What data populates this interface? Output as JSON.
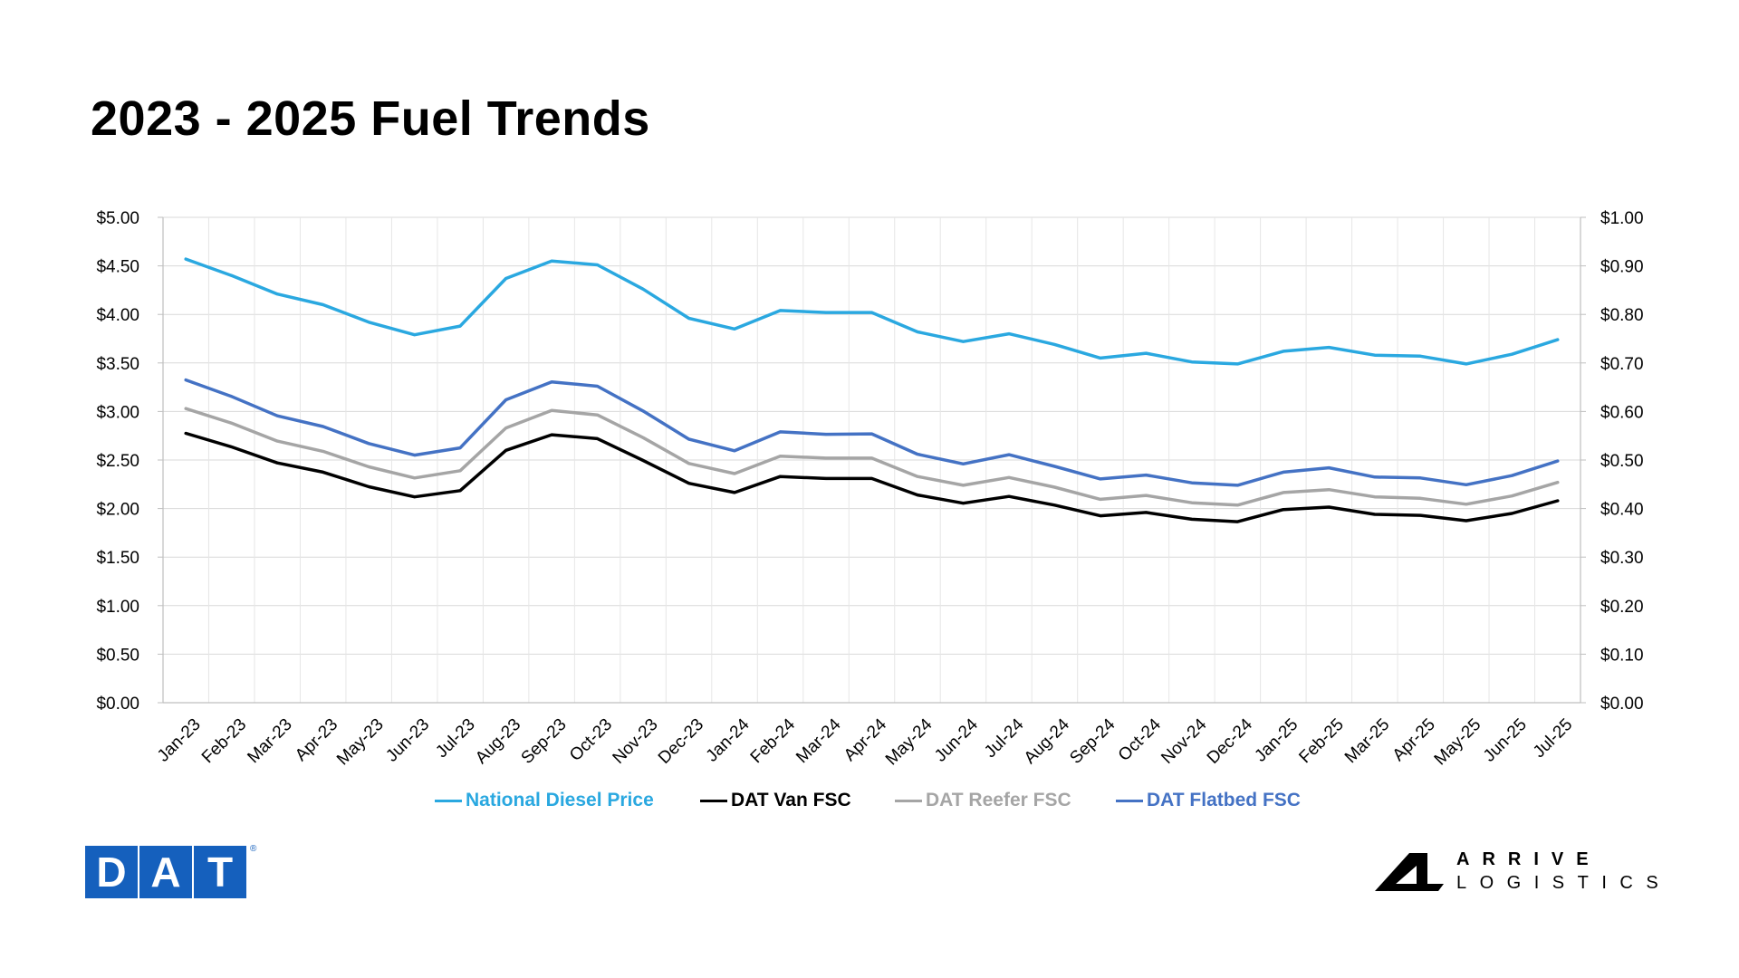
{
  "page": {
    "title": "2023 - 2025 Fuel Trends"
  },
  "chart_data": {
    "type": "line",
    "title": "2023 - 2025 Fuel Trends",
    "categories": [
      "Jan-23",
      "Feb-23",
      "Mar-23",
      "Apr-23",
      "May-23",
      "Jun-23",
      "Jul-23",
      "Aug-23",
      "Sep-23",
      "Oct-23",
      "Nov-23",
      "Dec-23",
      "Jan-24",
      "Feb-24",
      "Mar-24",
      "Apr-24",
      "May-24",
      "Jun-24",
      "Jul-24",
      "Aug-24",
      "Sep-24",
      "Oct-24",
      "Nov-24",
      "Dec-24",
      "Jan-25",
      "Feb-25",
      "Mar-25",
      "Apr-25",
      "May-25",
      "Jun-25",
      "Jul-25"
    ],
    "y_left": {
      "ylim": [
        0,
        5
      ],
      "ticks": [
        0,
        0.5,
        1,
        1.5,
        2,
        2.5,
        3,
        3.5,
        4,
        4.5,
        5
      ],
      "tick_labels": [
        "$0.00",
        "$0.50",
        "$1.00",
        "$1.50",
        "$2.00",
        "$2.50",
        "$3.00",
        "$3.50",
        "$4.00",
        "$4.50",
        "$5.00"
      ]
    },
    "y_right": {
      "ylim": [
        0,
        1
      ],
      "ticks": [
        0,
        0.1,
        0.2,
        0.3,
        0.4,
        0.5,
        0.6,
        0.7,
        0.8,
        0.9,
        1
      ],
      "tick_labels": [
        "$0.00",
        "$0.10",
        "$0.20",
        "$0.30",
        "$0.40",
        "$0.50",
        "$0.60",
        "$0.70",
        "$0.80",
        "$0.90",
        "$1.00"
      ]
    },
    "grid": true,
    "legend_position": "bottom",
    "series": [
      {
        "name": "National Diesel Price",
        "axis": "left",
        "color": "#2aa8e0",
        "values": [
          4.57,
          4.4,
          4.21,
          4.1,
          3.92,
          3.79,
          3.88,
          4.37,
          4.55,
          4.51,
          4.26,
          3.96,
          3.85,
          4.04,
          4.02,
          4.02,
          3.82,
          3.72,
          3.8,
          3.69,
          3.55,
          3.6,
          3.51,
          3.49,
          3.62,
          3.66,
          3.58,
          3.57,
          3.49,
          3.59,
          3.74
        ]
      },
      {
        "name": "DAT Van FSC",
        "axis": "right",
        "color": "#000000",
        "values": [
          0.555,
          0.527,
          0.494,
          0.475,
          0.445,
          0.424,
          0.437,
          0.52,
          0.552,
          0.544,
          0.499,
          0.452,
          0.433,
          0.466,
          0.462,
          0.462,
          0.428,
          0.411,
          0.425,
          0.407,
          0.385,
          0.392,
          0.378,
          0.373,
          0.398,
          0.403,
          0.388,
          0.386,
          0.375,
          0.39,
          0.416
        ]
      },
      {
        "name": "DAT Reefer FSC",
        "axis": "right",
        "color": "#a5a5a5",
        "values": [
          0.606,
          0.576,
          0.539,
          0.518,
          0.486,
          0.463,
          0.478,
          0.566,
          0.602,
          0.593,
          0.546,
          0.493,
          0.472,
          0.508,
          0.504,
          0.504,
          0.466,
          0.448,
          0.464,
          0.444,
          0.419,
          0.427,
          0.412,
          0.407,
          0.433,
          0.439,
          0.424,
          0.421,
          0.409,
          0.426,
          0.454
        ]
      },
      {
        "name": "DAT Flatbed FSC",
        "axis": "right",
        "color": "#4472c4",
        "values": [
          0.665,
          0.631,
          0.591,
          0.569,
          0.534,
          0.51,
          0.525,
          0.624,
          0.661,
          0.652,
          0.601,
          0.543,
          0.519,
          0.558,
          0.553,
          0.554,
          0.512,
          0.492,
          0.511,
          0.487,
          0.461,
          0.469,
          0.453,
          0.448,
          0.475,
          0.484,
          0.465,
          0.463,
          0.449,
          0.468,
          0.498
        ]
      }
    ]
  },
  "logos": {
    "dat": {
      "letters": [
        "D",
        "A",
        "T"
      ],
      "registered": "®"
    },
    "arrive": {
      "line1": "ARRIVE",
      "line2": "LOGISTICS"
    }
  }
}
